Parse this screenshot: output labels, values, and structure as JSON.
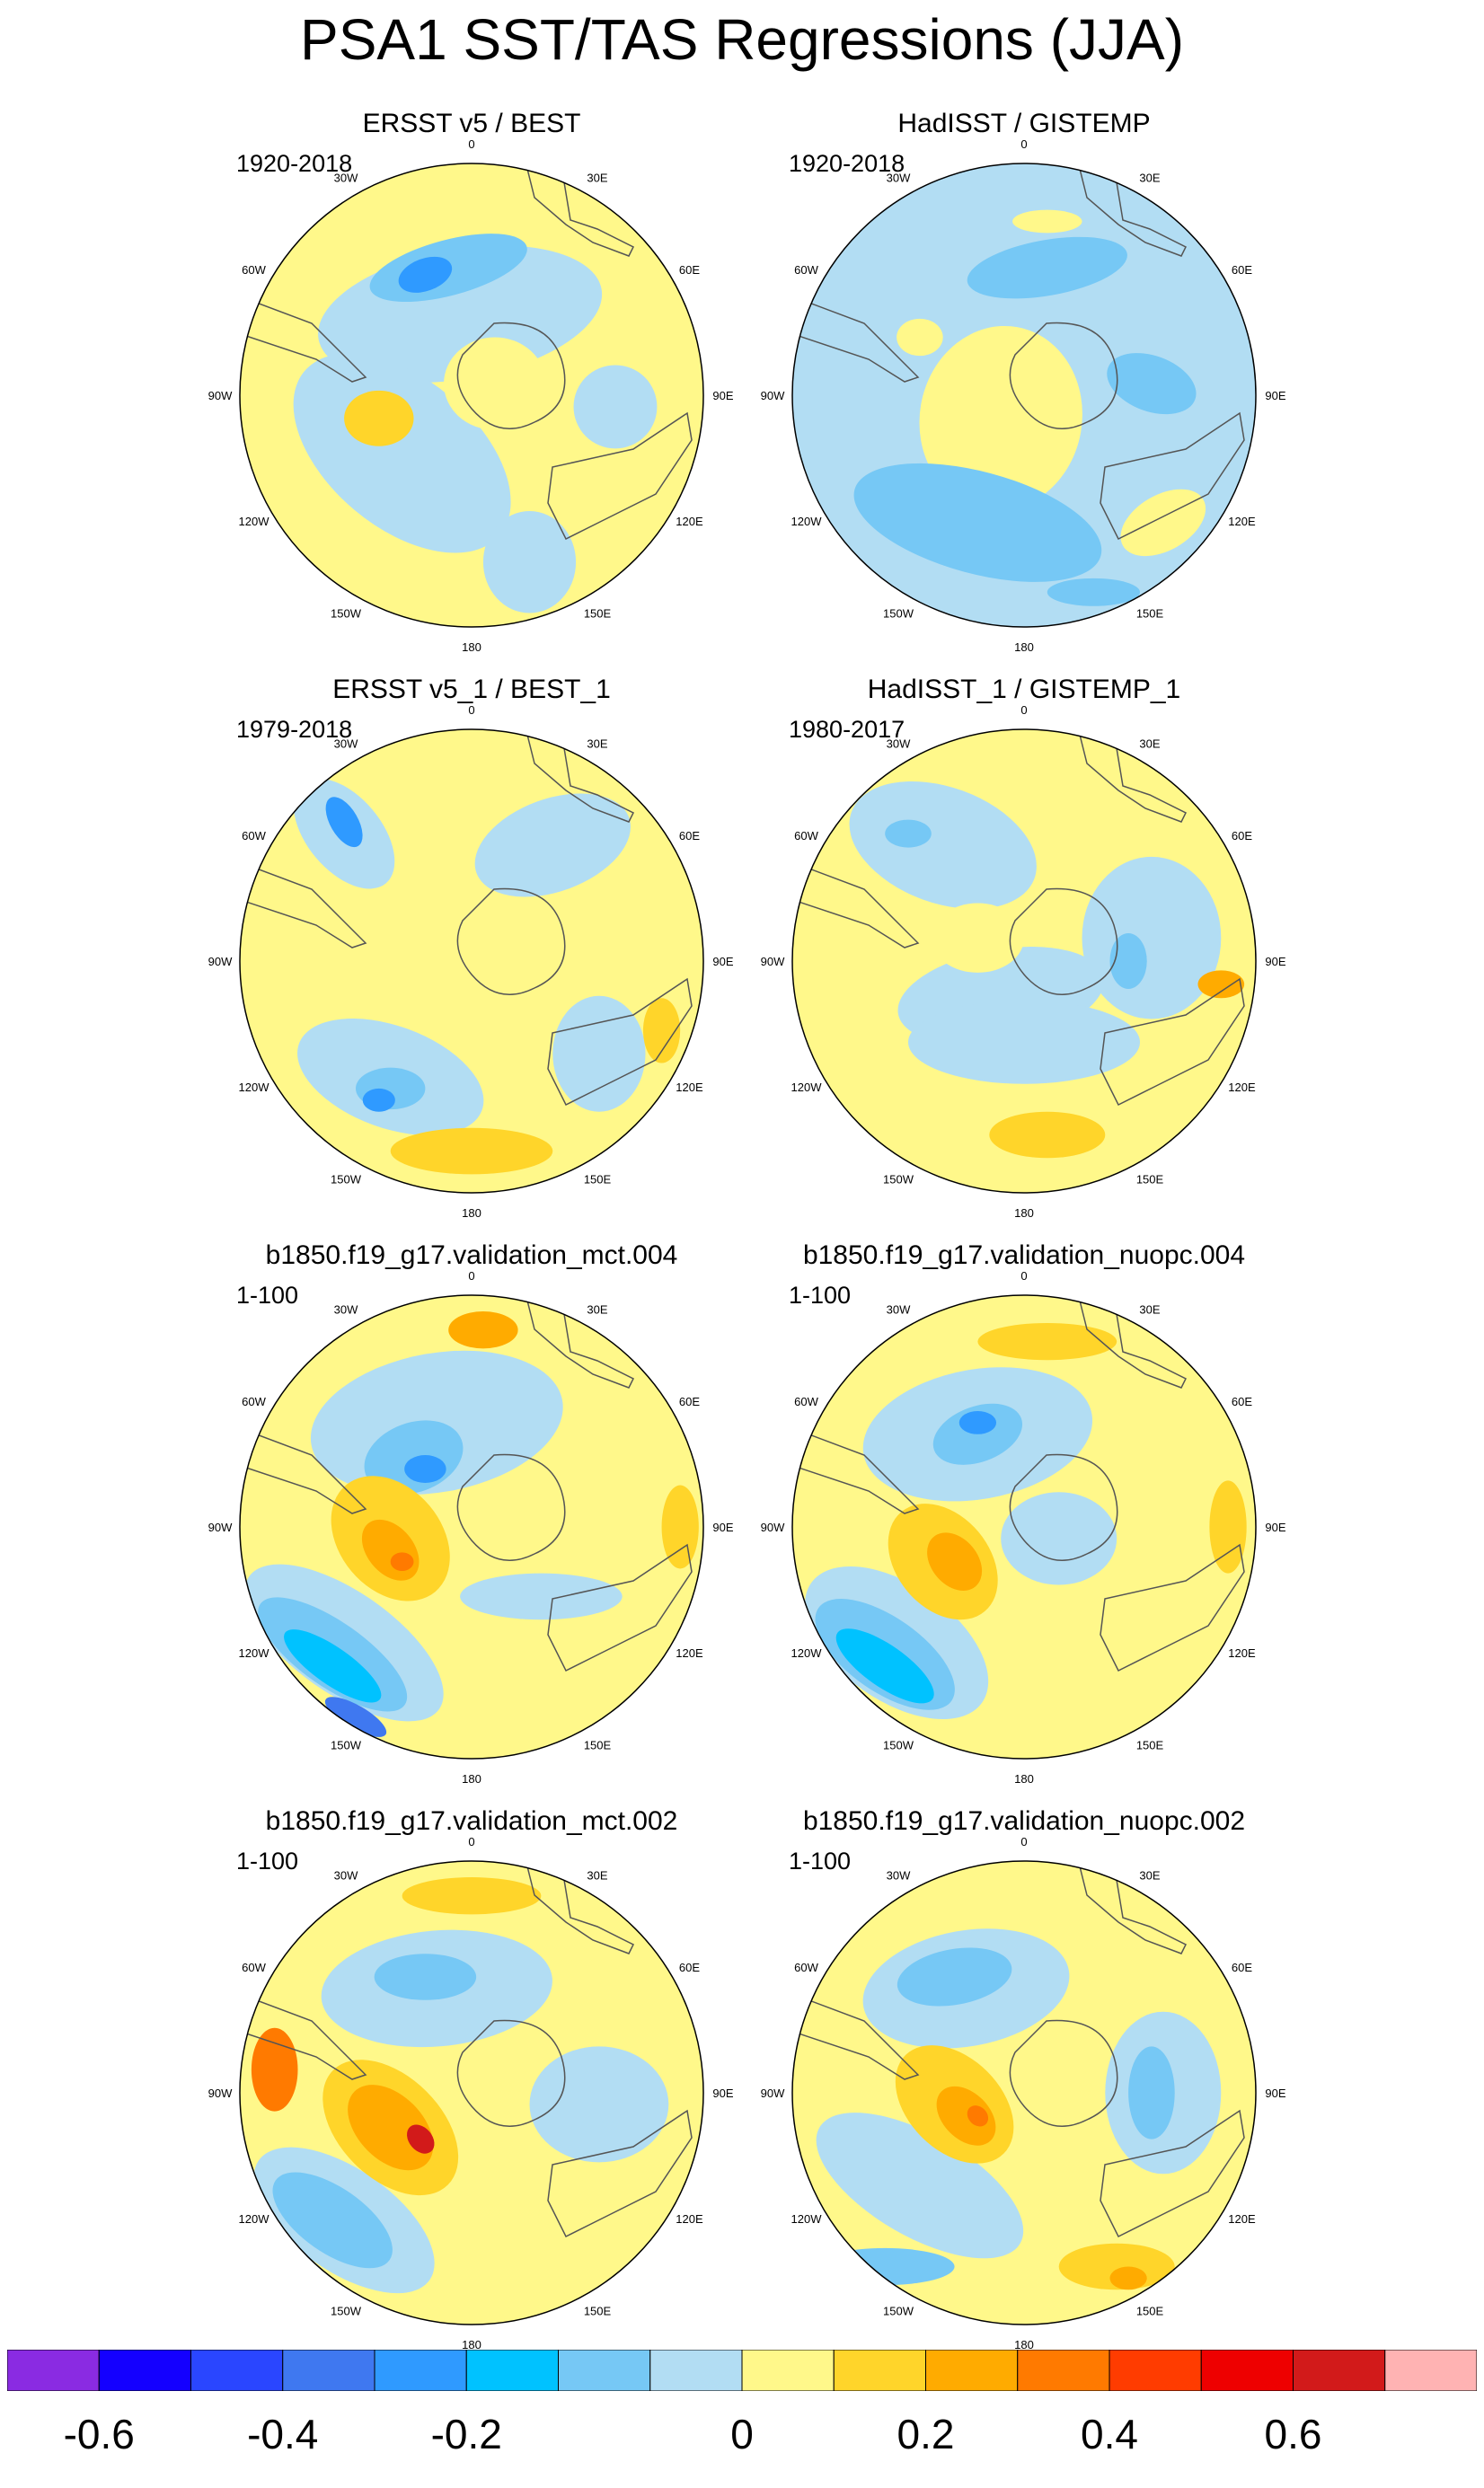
{
  "title": "PSA1 SST/TAS Regressions (JJA)",
  "panels": [
    {
      "title": "ERSST v5 / BEST",
      "period": "1920-2018"
    },
    {
      "title": "HadISST / GISTEMP",
      "period": "1920-2018"
    },
    {
      "title": "ERSST v5_1 / BEST_1",
      "period": "1979-2018"
    },
    {
      "title": "HadISST_1 / GISTEMP_1",
      "period": "1980-2017"
    },
    {
      "title": "b1850.f19_g17.validation_mct.004",
      "period": "1-100"
    },
    {
      "title": "b1850.f19_g17.validation_nuopc.004",
      "period": "1-100"
    },
    {
      "title": "b1850.f19_g17.validation_mct.002",
      "period": "1-100"
    },
    {
      "title": "b1850.f19_g17.validation_nuopc.002",
      "period": "1-100"
    }
  ],
  "longitude_labels": [
    "0",
    "30E",
    "60E",
    "90E",
    "120E",
    "150E",
    "180",
    "150W",
    "120W",
    "90W",
    "60W",
    "30W"
  ],
  "colorbar": {
    "colors": [
      "#8a2be2",
      "#1400ff",
      "#2a46ff",
      "#3f78f0",
      "#2f9aff",
      "#00c2ff",
      "#76c8f5",
      "#b2ddf3",
      "#fff88a",
      "#ffd52a",
      "#ffab00",
      "#ff7a00",
      "#ff3c00",
      "#ee0000",
      "#d21a1a",
      "#ffb3b3"
    ],
    "labels": [
      "-0.6",
      "-0.4",
      "-0.2",
      "0",
      "0.2",
      "0.4",
      "0.6"
    ],
    "label_boundaries": [
      1,
      3,
      5,
      8,
      10,
      12,
      14
    ]
  }
}
